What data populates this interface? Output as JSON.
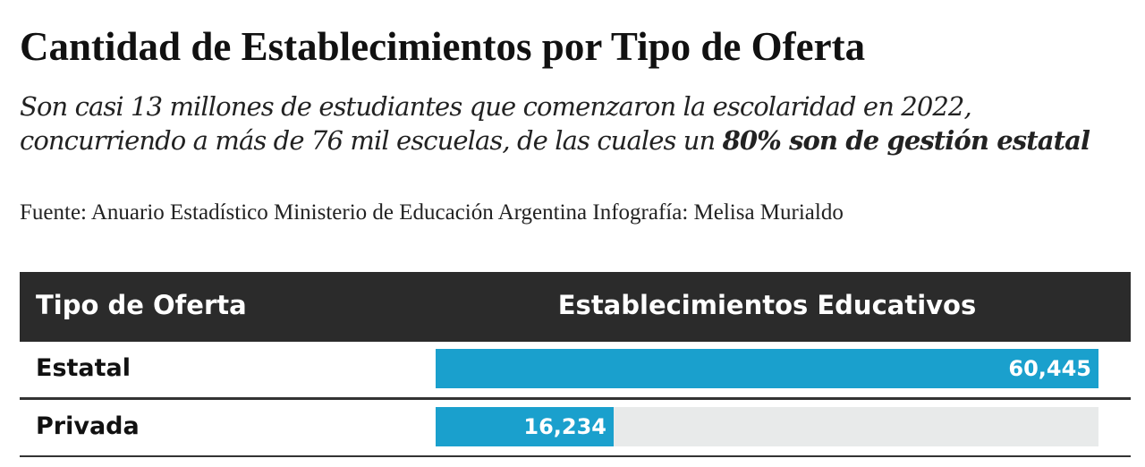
{
  "header": {
    "title": "Cantidad de Establecimientos por Tipo de Oferta",
    "subtitle_lead": "Son casi 13 millones de estudiantes que comenzaron la escolaridad en 2022, concurriendo a más de 76 mil escuelas, de las cuales un ",
    "subtitle_emphasis": "80% son de gestión estatal",
    "source": "Fuente: Anuario Estadístico Ministerio de Educación Argentina Infografía: Melisa Murialdo"
  },
  "colors": {
    "header_bg": "#2b2b2b",
    "bar": "#1aa0cd",
    "track": "#e8eaea"
  },
  "chart_data": {
    "type": "bar",
    "orientation": "horizontal",
    "columns": [
      "Tipo de Oferta",
      "Establecimientos Educativos"
    ],
    "categories": [
      "Estatal",
      "Privada"
    ],
    "values": [
      60445,
      16234
    ],
    "value_labels": [
      "60,445",
      "16,234"
    ],
    "xlim": [
      0,
      60445
    ]
  }
}
